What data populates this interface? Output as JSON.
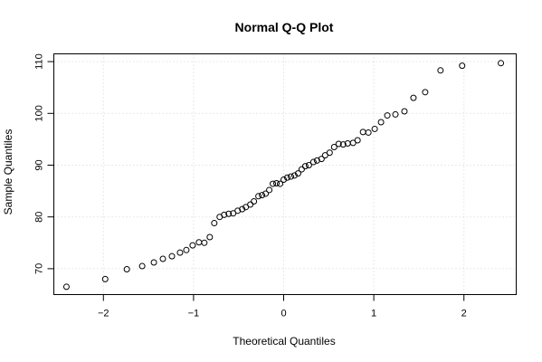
{
  "chart_data": {
    "type": "scatter",
    "title": "Normal Q-Q Plot",
    "xlabel": "Theoretical Quantiles",
    "ylabel": "Sample Quantiles",
    "xlim": [
      -2.55,
      2.58
    ],
    "ylim": [
      65.0,
      111.5
    ],
    "x_ticks": [
      -2,
      -1,
      0,
      1,
      2
    ],
    "x_tick_labels": [
      "−2",
      "−1",
      "0",
      "1",
      "2"
    ],
    "y_ticks": [
      70,
      80,
      90,
      100,
      110
    ],
    "y_tick_labels": [
      "70",
      "80",
      "90",
      "100",
      "110"
    ],
    "grid": true,
    "series": [
      {
        "points": [
          [
            -2.41,
            66.5
          ],
          [
            -1.98,
            68.0
          ],
          [
            -1.74,
            69.9
          ],
          [
            -1.57,
            70.5
          ],
          [
            -1.44,
            71.2
          ],
          [
            -1.34,
            71.9
          ],
          [
            -1.24,
            72.4
          ],
          [
            -1.15,
            73.1
          ],
          [
            -1.08,
            73.6
          ],
          [
            -1.01,
            74.5
          ],
          [
            -0.94,
            75.1
          ],
          [
            -0.88,
            75.0
          ],
          [
            -0.82,
            76.1
          ],
          [
            -0.77,
            78.8
          ],
          [
            -0.71,
            80.0
          ],
          [
            -0.66,
            80.4
          ],
          [
            -0.61,
            80.6
          ],
          [
            -0.56,
            80.7
          ],
          [
            -0.51,
            81.2
          ],
          [
            -0.46,
            81.5
          ],
          [
            -0.42,
            81.9
          ],
          [
            -0.37,
            82.4
          ],
          [
            -0.33,
            83.0
          ],
          [
            -0.28,
            84.0
          ],
          [
            -0.24,
            84.2
          ],
          [
            -0.2,
            84.5
          ],
          [
            -0.16,
            85.2
          ],
          [
            -0.12,
            86.4
          ],
          [
            -0.08,
            86.5
          ],
          [
            -0.04,
            86.4
          ],
          [
            0.0,
            87.2
          ],
          [
            0.04,
            87.6
          ],
          [
            0.08,
            87.8
          ],
          [
            0.12,
            88.0
          ],
          [
            0.16,
            88.4
          ],
          [
            0.2,
            89.2
          ],
          [
            0.24,
            89.8
          ],
          [
            0.28,
            90.0
          ],
          [
            0.33,
            90.6
          ],
          [
            0.37,
            90.9
          ],
          [
            0.42,
            91.2
          ],
          [
            0.46,
            91.9
          ],
          [
            0.51,
            92.4
          ],
          [
            0.56,
            93.5
          ],
          [
            0.61,
            94.1
          ],
          [
            0.66,
            94.0
          ],
          [
            0.71,
            94.2
          ],
          [
            0.77,
            94.3
          ],
          [
            0.82,
            94.8
          ],
          [
            0.88,
            96.4
          ],
          [
            0.94,
            96.3
          ],
          [
            1.01,
            97.0
          ],
          [
            1.08,
            98.3
          ],
          [
            1.15,
            99.6
          ],
          [
            1.24,
            99.8
          ],
          [
            1.34,
            100.4
          ],
          [
            1.44,
            103.0
          ],
          [
            1.57,
            104.1
          ],
          [
            1.74,
            108.3
          ],
          [
            1.98,
            109.2
          ],
          [
            2.41,
            109.7
          ]
        ]
      }
    ]
  }
}
